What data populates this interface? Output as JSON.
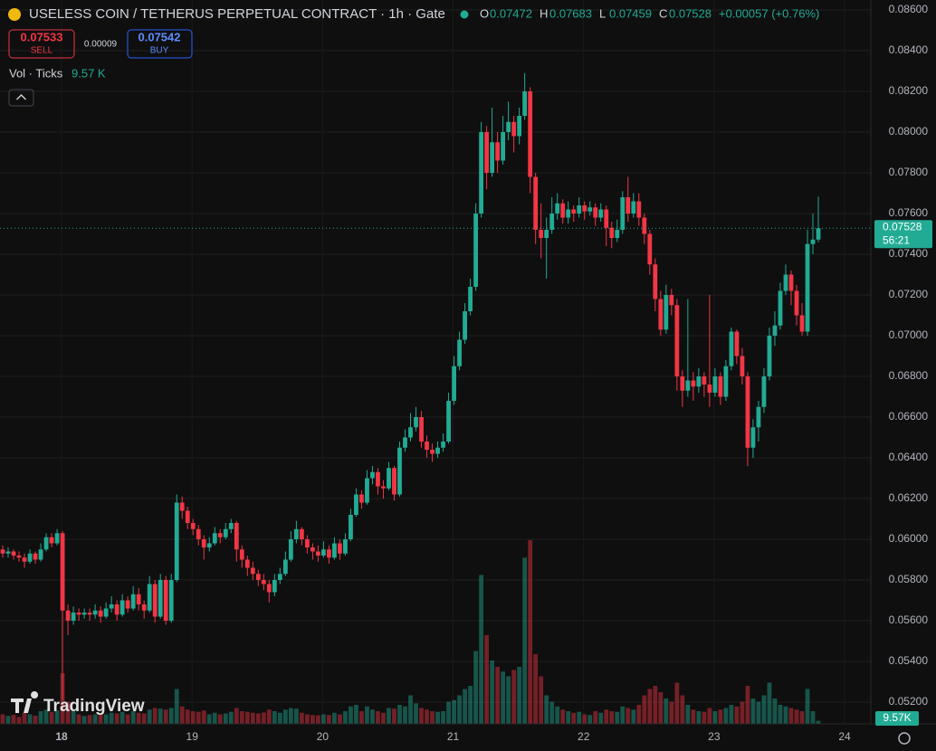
{
  "chart_data": {
    "type": "candlestick",
    "title": "USELESS COIN / TETHERUS PERPETUAL CONTRACT · 1h · Gate",
    "ohlc_legend": [
      {
        "key": "O",
        "value": "0.07472"
      },
      {
        "key": "H",
        "value": "0.07683"
      },
      {
        "key": "L",
        "value": "0.07459"
      },
      {
        "key": "C",
        "value": "0.07528"
      }
    ],
    "change": "+0.00057 (+0.76%)",
    "sell": {
      "price": "0.07533",
      "label": "SELL"
    },
    "spread": "0.00009",
    "buy": {
      "price": "0.07542",
      "label": "BUY"
    },
    "volume_indicator": {
      "label": "Vol · Ticks",
      "value": "9.57 K",
      "badge": "9.57K"
    },
    "last_price": {
      "label": "0.07528",
      "countdown": "56:21"
    },
    "logo": "TradingView",
    "up_color": "#22ab94",
    "down_color": "#f23645",
    "ylim": [
      0.052,
      0.086
    ],
    "yticks": [
      {
        "value": 0.052,
        "label": "0.05200"
      },
      {
        "value": 0.054,
        "label": "0.05400"
      },
      {
        "value": 0.056,
        "label": "0.05600"
      },
      {
        "value": 0.058,
        "label": "0.05800"
      },
      {
        "value": 0.06,
        "label": "0.06000"
      },
      {
        "value": 0.062,
        "label": "0.06200"
      },
      {
        "value": 0.064,
        "label": "0.06400"
      },
      {
        "value": 0.066,
        "label": "0.06600"
      },
      {
        "value": 0.068,
        "label": "0.06800"
      },
      {
        "value": 0.07,
        "label": "0.07000"
      },
      {
        "value": 0.072,
        "label": "0.07200"
      },
      {
        "value": 0.074,
        "label": "0.07400"
      },
      {
        "value": 0.076,
        "label": "0.07600"
      },
      {
        "value": 0.078,
        "label": "0.07800"
      },
      {
        "value": 0.08,
        "label": "0.08000"
      },
      {
        "value": 0.082,
        "label": "0.08200"
      },
      {
        "value": 0.084,
        "label": "0.08400"
      },
      {
        "value": 0.086,
        "label": "0.08600"
      }
    ],
    "xlim": [
      17.528,
      24.201
    ],
    "xticks": [
      18,
      19,
      20,
      21,
      22,
      23,
      24
    ],
    "volume_lim": [
      0,
      600
    ],
    "candles": [
      [
        0.0595,
        0.0597,
        0.0591,
        0.0593,
        30
      ],
      [
        0.0593,
        0.0596,
        0.0591,
        0.0594,
        25
      ],
      [
        0.0594,
        0.0595,
        0.059,
        0.0592,
        28
      ],
      [
        0.0592,
        0.0594,
        0.0589,
        0.0591,
        22
      ],
      [
        0.0591,
        0.0593,
        0.0586,
        0.0589,
        35
      ],
      [
        0.0589,
        0.0595,
        0.0588,
        0.0593,
        30
      ],
      [
        0.0593,
        0.0594,
        0.0588,
        0.059,
        26
      ],
      [
        0.059,
        0.0598,
        0.0589,
        0.0595,
        40
      ],
      [
        0.0595,
        0.0603,
        0.0594,
        0.0601,
        45
      ],
      [
        0.0601,
        0.0603,
        0.0596,
        0.0598,
        38
      ],
      [
        0.0598,
        0.0605,
        0.0597,
        0.0603,
        42
      ],
      [
        0.0603,
        0.0604,
        0.0521,
        0.0565,
        160
      ],
      [
        0.0565,
        0.0568,
        0.0553,
        0.056,
        70
      ],
      [
        0.056,
        0.0567,
        0.0558,
        0.0564,
        40
      ],
      [
        0.0564,
        0.0566,
        0.056,
        0.0563,
        30
      ],
      [
        0.0563,
        0.0566,
        0.0561,
        0.0564,
        25
      ],
      [
        0.0564,
        0.0566,
        0.056,
        0.0563,
        28
      ],
      [
        0.0563,
        0.0568,
        0.0561,
        0.0565,
        30
      ],
      [
        0.0565,
        0.0567,
        0.0559,
        0.0562,
        32
      ],
      [
        0.0562,
        0.0569,
        0.0561,
        0.0566,
        30
      ],
      [
        0.0566,
        0.0572,
        0.0564,
        0.0568,
        35
      ],
      [
        0.0568,
        0.057,
        0.056,
        0.0563,
        33
      ],
      [
        0.0563,
        0.0573,
        0.0562,
        0.057,
        38
      ],
      [
        0.057,
        0.0572,
        0.0564,
        0.0566,
        30
      ],
      [
        0.0566,
        0.0577,
        0.0565,
        0.0573,
        40
      ],
      [
        0.0573,
        0.0576,
        0.0565,
        0.0568,
        35
      ],
      [
        0.0568,
        0.057,
        0.0561,
        0.0565,
        33
      ],
      [
        0.0565,
        0.0582,
        0.0564,
        0.0578,
        45
      ],
      [
        0.0578,
        0.058,
        0.0559,
        0.0562,
        50
      ],
      [
        0.0562,
        0.0583,
        0.0561,
        0.058,
        48
      ],
      [
        0.058,
        0.0582,
        0.0558,
        0.056,
        45
      ],
      [
        0.056,
        0.0583,
        0.0559,
        0.058,
        50
      ],
      [
        0.058,
        0.0622,
        0.0579,
        0.0618,
        110
      ],
      [
        0.0618,
        0.0621,
        0.061,
        0.0614,
        55
      ],
      [
        0.0614,
        0.0616,
        0.0605,
        0.0608,
        45
      ],
      [
        0.0608,
        0.061,
        0.0602,
        0.0605,
        40
      ],
      [
        0.0605,
        0.0607,
        0.0597,
        0.06,
        38
      ],
      [
        0.06,
        0.0602,
        0.059,
        0.0596,
        42
      ],
      [
        0.0596,
        0.0601,
        0.0594,
        0.0598,
        30
      ],
      [
        0.0598,
        0.0606,
        0.0597,
        0.0603,
        35
      ],
      [
        0.0603,
        0.0605,
        0.0598,
        0.0601,
        30
      ],
      [
        0.0601,
        0.0608,
        0.06,
        0.0605,
        33
      ],
      [
        0.0605,
        0.061,
        0.0603,
        0.0608,
        38
      ],
      [
        0.0608,
        0.0609,
        0.0589,
        0.0595,
        50
      ],
      [
        0.0595,
        0.0597,
        0.0586,
        0.059,
        40
      ],
      [
        0.059,
        0.0592,
        0.0582,
        0.0586,
        38
      ],
      [
        0.0586,
        0.0589,
        0.058,
        0.0583,
        35
      ],
      [
        0.0583,
        0.0585,
        0.0577,
        0.058,
        33
      ],
      [
        0.058,
        0.0583,
        0.0575,
        0.0578,
        36
      ],
      [
        0.0578,
        0.058,
        0.0569,
        0.0574,
        45
      ],
      [
        0.0574,
        0.0583,
        0.0572,
        0.058,
        40
      ],
      [
        0.058,
        0.0586,
        0.0578,
        0.0583,
        35
      ],
      [
        0.0583,
        0.0594,
        0.0582,
        0.059,
        45
      ],
      [
        0.059,
        0.0604,
        0.0589,
        0.06,
        50
      ],
      [
        0.06,
        0.0609,
        0.0598,
        0.0605,
        48
      ],
      [
        0.0605,
        0.0606,
        0.0597,
        0.06,
        35
      ],
      [
        0.06,
        0.0602,
        0.0593,
        0.0596,
        30
      ],
      [
        0.0596,
        0.0598,
        0.059,
        0.0594,
        28
      ],
      [
        0.0594,
        0.0597,
        0.0589,
        0.0592,
        27
      ],
      [
        0.0592,
        0.0599,
        0.0591,
        0.0595,
        30
      ],
      [
        0.0595,
        0.0597,
        0.0588,
        0.0591,
        28
      ],
      [
        0.0591,
        0.0601,
        0.059,
        0.0598,
        35
      ],
      [
        0.0598,
        0.06,
        0.059,
        0.0593,
        30
      ],
      [
        0.0593,
        0.0603,
        0.0592,
        0.06,
        40
      ],
      [
        0.06,
        0.0615,
        0.0599,
        0.0612,
        55
      ],
      [
        0.0612,
        0.0625,
        0.0611,
        0.0622,
        60
      ],
      [
        0.0622,
        0.0624,
        0.0615,
        0.0618,
        40
      ],
      [
        0.0618,
        0.0634,
        0.0617,
        0.063,
        55
      ],
      [
        0.063,
        0.0636,
        0.0627,
        0.0633,
        45
      ],
      [
        0.0633,
        0.0635,
        0.0622,
        0.0626,
        40
      ],
      [
        0.0626,
        0.0629,
        0.062,
        0.0625,
        35
      ],
      [
        0.0625,
        0.0638,
        0.0624,
        0.0635,
        50
      ],
      [
        0.0635,
        0.0636,
        0.0619,
        0.0622,
        48
      ],
      [
        0.0622,
        0.0648,
        0.0621,
        0.0645,
        60
      ],
      [
        0.0645,
        0.0654,
        0.0643,
        0.065,
        55
      ],
      [
        0.065,
        0.0662,
        0.0648,
        0.0655,
        90
      ],
      [
        0.0655,
        0.0665,
        0.0653,
        0.066,
        65
      ],
      [
        0.066,
        0.0663,
        0.0645,
        0.0648,
        50
      ],
      [
        0.0648,
        0.0651,
        0.064,
        0.0644,
        45
      ],
      [
        0.0644,
        0.0647,
        0.0638,
        0.0642,
        40
      ],
      [
        0.0642,
        0.0648,
        0.064,
        0.0645,
        38
      ],
      [
        0.0645,
        0.0652,
        0.0643,
        0.0648,
        40
      ],
      [
        0.0648,
        0.0672,
        0.0647,
        0.0668,
        70
      ],
      [
        0.0668,
        0.069,
        0.0666,
        0.0685,
        75
      ],
      [
        0.0685,
        0.0702,
        0.0683,
        0.0698,
        90
      ],
      [
        0.0698,
        0.0716,
        0.0696,
        0.0712,
        110
      ],
      [
        0.0712,
        0.0728,
        0.071,
        0.0724,
        120
      ],
      [
        0.0724,
        0.0765,
        0.0722,
        0.076,
        230
      ],
      [
        0.076,
        0.0805,
        0.0758,
        0.08,
        470
      ],
      [
        0.08,
        0.0803,
        0.0772,
        0.078,
        280
      ],
      [
        0.078,
        0.0812,
        0.0778,
        0.0795,
        200
      ],
      [
        0.0795,
        0.08,
        0.078,
        0.0786,
        180
      ],
      [
        0.0786,
        0.0808,
        0.0784,
        0.08,
        165
      ],
      [
        0.08,
        0.0815,
        0.0796,
        0.0805,
        150
      ],
      [
        0.0805,
        0.0808,
        0.079,
        0.0798,
        170
      ],
      [
        0.0798,
        0.0812,
        0.0794,
        0.0808,
        180
      ],
      [
        0.0808,
        0.0829,
        0.0806,
        0.082,
        525
      ],
      [
        0.082,
        0.0822,
        0.077,
        0.0778,
        580
      ],
      [
        0.0778,
        0.078,
        0.0745,
        0.0752,
        220
      ],
      [
        0.0752,
        0.0765,
        0.0738,
        0.0748,
        150
      ],
      [
        0.0748,
        0.0758,
        0.0728,
        0.0752,
        90
      ],
      [
        0.0752,
        0.0768,
        0.075,
        0.076,
        70
      ],
      [
        0.076,
        0.077,
        0.0757,
        0.0765,
        55
      ],
      [
        0.0765,
        0.0767,
        0.0755,
        0.0758,
        45
      ],
      [
        0.0758,
        0.0766,
        0.0755,
        0.0762,
        40
      ],
      [
        0.0762,
        0.0764,
        0.0756,
        0.076,
        35
      ],
      [
        0.076,
        0.0768,
        0.0758,
        0.0764,
        38
      ],
      [
        0.0764,
        0.0766,
        0.0757,
        0.0761,
        30
      ],
      [
        0.0761,
        0.0766,
        0.0759,
        0.0763,
        28
      ],
      [
        0.0763,
        0.0765,
        0.0754,
        0.0758,
        40
      ],
      [
        0.0758,
        0.0765,
        0.0756,
        0.0762,
        35
      ],
      [
        0.0762,
        0.0764,
        0.0744,
        0.0753,
        45
      ],
      [
        0.0753,
        0.0756,
        0.0743,
        0.0748,
        40
      ],
      [
        0.0748,
        0.0757,
        0.0746,
        0.0752,
        38
      ],
      [
        0.0752,
        0.0771,
        0.075,
        0.0768,
        55
      ],
      [
        0.0768,
        0.0778,
        0.0756,
        0.076,
        50
      ],
      [
        0.076,
        0.077,
        0.0758,
        0.0766,
        45
      ],
      [
        0.0766,
        0.077,
        0.0754,
        0.0758,
        60
      ],
      [
        0.0758,
        0.076,
        0.0745,
        0.075,
        90
      ],
      [
        0.075,
        0.0752,
        0.073,
        0.0735,
        110
      ],
      [
        0.0735,
        0.0738,
        0.0712,
        0.0718,
        120
      ],
      [
        0.0718,
        0.0722,
        0.07,
        0.0703,
        100
      ],
      [
        0.0703,
        0.0725,
        0.0701,
        0.072,
        80
      ],
      [
        0.072,
        0.0723,
        0.071,
        0.0715,
        70
      ],
      [
        0.0715,
        0.0718,
        0.0673,
        0.068,
        130
      ],
      [
        0.068,
        0.0683,
        0.0665,
        0.0673,
        90
      ],
      [
        0.0673,
        0.0718,
        0.067,
        0.0678,
        60
      ],
      [
        0.0678,
        0.0682,
        0.0668,
        0.0675,
        45
      ],
      [
        0.0675,
        0.0684,
        0.0672,
        0.068,
        40
      ],
      [
        0.068,
        0.0682,
        0.067,
        0.0676,
        38
      ],
      [
        0.0676,
        0.072,
        0.0665,
        0.0672,
        50
      ],
      [
        0.0672,
        0.0684,
        0.067,
        0.068,
        40
      ],
      [
        0.068,
        0.0682,
        0.0666,
        0.067,
        45
      ],
      [
        0.067,
        0.0688,
        0.0668,
        0.0685,
        50
      ],
      [
        0.0685,
        0.0704,
        0.0683,
        0.0702,
        60
      ],
      [
        0.0702,
        0.0703,
        0.0686,
        0.069,
        55
      ],
      [
        0.069,
        0.0694,
        0.0676,
        0.068,
        70
      ],
      [
        0.068,
        0.0682,
        0.0636,
        0.0645,
        120
      ],
      [
        0.0645,
        0.0659,
        0.064,
        0.0655,
        80
      ],
      [
        0.0655,
        0.0668,
        0.0648,
        0.0665,
        70
      ],
      [
        0.0665,
        0.0684,
        0.0662,
        0.068,
        90
      ],
      [
        0.068,
        0.0704,
        0.0678,
        0.07,
        130
      ],
      [
        0.07,
        0.0712,
        0.0695,
        0.0705,
        80
      ],
      [
        0.0705,
        0.0726,
        0.0703,
        0.0722,
        60
      ],
      [
        0.0722,
        0.0735,
        0.072,
        0.073,
        55
      ],
      [
        0.073,
        0.0732,
        0.0715,
        0.0722,
        50
      ],
      [
        0.0722,
        0.0725,
        0.0705,
        0.071,
        45
      ],
      [
        0.071,
        0.0716,
        0.07,
        0.0702,
        40
      ],
      [
        0.0702,
        0.0752,
        0.07,
        0.0745,
        110
      ],
      [
        0.0745,
        0.076,
        0.074,
        0.07472,
        40
      ],
      [
        0.07472,
        0.07683,
        0.07459,
        0.07528,
        9.57
      ]
    ]
  }
}
